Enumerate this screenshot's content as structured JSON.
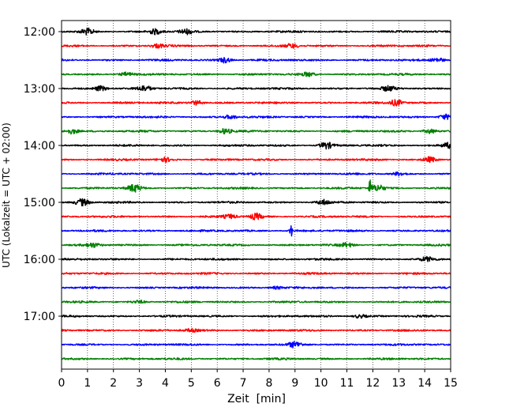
{
  "chart_data": {
    "type": "line",
    "title": "",
    "xlabel": "Zeit  [min]",
    "ylabel": "UTC (Lokalzeit = UTC + 02:00)",
    "xlim": [
      0,
      15
    ],
    "x_ticks": [
      0,
      1,
      2,
      3,
      4,
      5,
      6,
      7,
      8,
      9,
      10,
      11,
      12,
      13,
      14,
      15
    ],
    "x_tick_labels": [
      "0",
      "1",
      "2",
      "3",
      "4",
      "5",
      "6",
      "7",
      "8",
      "9",
      "10",
      "11",
      "12",
      "13",
      "14",
      "15"
    ],
    "y_tick_labels": [
      "12:00",
      "13:00",
      "14:00",
      "15:00",
      "16:00",
      "17:00"
    ],
    "grid": {
      "x": true,
      "y": false,
      "style": "dotted"
    },
    "color_cycle": [
      "#000000",
      "#ff0000",
      "#0000ff",
      "#008000"
    ],
    "traces": [
      {
        "start": "12:00",
        "color": "#000000",
        "events": [
          {
            "t": 1.0,
            "amp": 0.45
          },
          {
            "t": 3.6,
            "amp": 0.4
          },
          {
            "t": 4.8,
            "amp": 0.35
          }
        ]
      },
      {
        "start": "12:15",
        "color": "#ff0000",
        "events": [
          {
            "t": 3.7,
            "amp": 0.3
          },
          {
            "t": 8.9,
            "amp": 0.3
          }
        ]
      },
      {
        "start": "12:30",
        "color": "#0000ff",
        "events": [
          {
            "t": 6.3,
            "amp": 0.4
          },
          {
            "t": 14.5,
            "amp": 0.35
          }
        ]
      },
      {
        "start": "12:45",
        "color": "#008000",
        "events": [
          {
            "t": 2.5,
            "amp": 0.3
          },
          {
            "t": 9.5,
            "amp": 0.3
          }
        ]
      },
      {
        "start": "13:00",
        "color": "#000000",
        "events": [
          {
            "t": 1.5,
            "amp": 0.4
          },
          {
            "t": 3.2,
            "amp": 0.4
          },
          {
            "t": 12.6,
            "amp": 0.35
          }
        ]
      },
      {
        "start": "13:15",
        "color": "#ff0000",
        "events": [
          {
            "t": 5.2,
            "amp": 0.35
          },
          {
            "t": 12.9,
            "amp": 0.45
          }
        ]
      },
      {
        "start": "13:30",
        "color": "#0000ff",
        "events": [
          {
            "t": 6.5,
            "amp": 0.3
          },
          {
            "t": 14.8,
            "amp": 0.4
          }
        ]
      },
      {
        "start": "13:45",
        "color": "#008000",
        "events": [
          {
            "t": 0.4,
            "amp": 0.4
          },
          {
            "t": 6.3,
            "amp": 0.4
          },
          {
            "t": 14.2,
            "amp": 0.35
          }
        ]
      },
      {
        "start": "14:00",
        "color": "#000000",
        "events": [
          {
            "t": 10.2,
            "amp": 0.5
          },
          {
            "t": 14.9,
            "amp": 0.4
          }
        ]
      },
      {
        "start": "14:15",
        "color": "#ff0000",
        "events": [
          {
            "t": 4.0,
            "amp": 0.3
          },
          {
            "t": 14.2,
            "amp": 0.4
          }
        ]
      },
      {
        "start": "14:30",
        "color": "#0000ff",
        "events": [
          {
            "t": 13.0,
            "amp": 0.25
          }
        ]
      },
      {
        "start": "14:45",
        "color": "#008000",
        "events": [
          {
            "t": 2.8,
            "amp": 0.55
          },
          {
            "t": 11.9,
            "amp": 1.2
          },
          {
            "t": 12.2,
            "amp": 0.5
          }
        ]
      },
      {
        "start": "15:00",
        "color": "#000000",
        "events": [
          {
            "t": 0.8,
            "amp": 0.5
          },
          {
            "t": 10.1,
            "amp": 0.35
          }
        ]
      },
      {
        "start": "15:15",
        "color": "#ff0000",
        "events": [
          {
            "t": 6.5,
            "amp": 0.3
          },
          {
            "t": 7.5,
            "amp": 0.45
          }
        ]
      },
      {
        "start": "15:30",
        "color": "#0000ff",
        "events": [
          {
            "t": 8.85,
            "amp": 0.9
          }
        ]
      },
      {
        "start": "15:45",
        "color": "#008000",
        "events": [
          {
            "t": 1.2,
            "amp": 0.3
          },
          {
            "t": 11.0,
            "amp": 0.3
          }
        ]
      },
      {
        "start": "16:00",
        "color": "#000000",
        "events": [
          {
            "t": 14.1,
            "amp": 0.3
          }
        ]
      },
      {
        "start": "16:15",
        "color": "#ff0000",
        "events": []
      },
      {
        "start": "16:30",
        "color": "#0000ff",
        "events": [
          {
            "t": 8.3,
            "amp": 0.2
          }
        ]
      },
      {
        "start": "16:45",
        "color": "#008000",
        "events": [
          {
            "t": 3.0,
            "amp": 0.2
          }
        ]
      },
      {
        "start": "17:00",
        "color": "#000000",
        "events": [
          {
            "t": 11.5,
            "amp": 0.25
          }
        ]
      },
      {
        "start": "17:15",
        "color": "#ff0000",
        "events": [
          {
            "t": 5.0,
            "amp": 0.2
          }
        ]
      },
      {
        "start": "17:30",
        "color": "#0000ff",
        "events": [
          {
            "t": 9.0,
            "amp": 0.4
          }
        ]
      },
      {
        "start": "17:45",
        "color": "#008000",
        "events": []
      }
    ]
  }
}
